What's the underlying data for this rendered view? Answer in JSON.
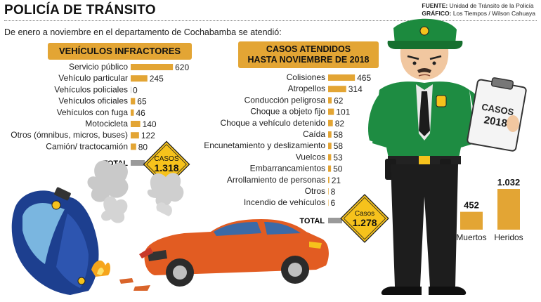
{
  "title": "POLICÍA DE TRÁNSITO",
  "source": {
    "fuente_label": "FUENTE:",
    "fuente_value": "Unidad de Tránsito de la Policía",
    "grafico_label": "GRÁFICO:",
    "grafico_value": "Los Tiempos / Wilson Cahuaya"
  },
  "subtitle": "De enero a noviembre en el departamento de Cochabamba se atendió:",
  "colors": {
    "bar": "#e3a534",
    "total_bar": "#9a9a9a",
    "sign": "#f6c21c"
  },
  "chart_data": [
    {
      "type": "bar",
      "orientation": "horizontal",
      "title": "VEHÍCULOS INFRACTORES",
      "categories": [
        "Servicio público",
        "Vehículo particular",
        "Vehículos policiales",
        "Vehículos oficiales",
        "Vehículos con fuga",
        "Motocicleta",
        "Otros (ómnibus, micros, buses)",
        "Camión/ tractocamión"
      ],
      "values": [
        620,
        245,
        0,
        65,
        46,
        140,
        122,
        80
      ],
      "total_label": "TOTAL",
      "total_sign_label": "CASOS",
      "total_value": "1.318"
    },
    {
      "type": "bar",
      "orientation": "horizontal",
      "title": "CASOS ATENDIDOS HASTA NOVIEMBRE DE 2018",
      "title_lines": [
        "CASOS ATENDIDOS",
        "HASTA NOVIEMBRE DE 2018"
      ],
      "categories": [
        "Colisiones",
        "Atropellos",
        "Conducción peligrosa",
        "Choque a objeto fijo",
        "Choque a vehículo detenido",
        "Caída",
        "Encunetamiento y deslizamiento",
        "Vuelcos",
        "Embarrancamientos",
        "Arrollamiento de personas",
        "Otros",
        "Incendio de vehículos"
      ],
      "values": [
        465,
        314,
        62,
        101,
        82,
        58,
        58,
        53,
        50,
        21,
        8,
        6
      ],
      "total_label": "TOTAL",
      "total_sign_label": "Casos",
      "total_value": "1.278"
    },
    {
      "type": "bar",
      "orientation": "vertical",
      "categories": [
        "Muertos",
        "Heridos"
      ],
      "values": [
        452,
        1032
      ],
      "value_labels": [
        "452",
        "1.032"
      ]
    }
  ],
  "clipboard": {
    "line1": "CASOS",
    "line2": "2018"
  }
}
